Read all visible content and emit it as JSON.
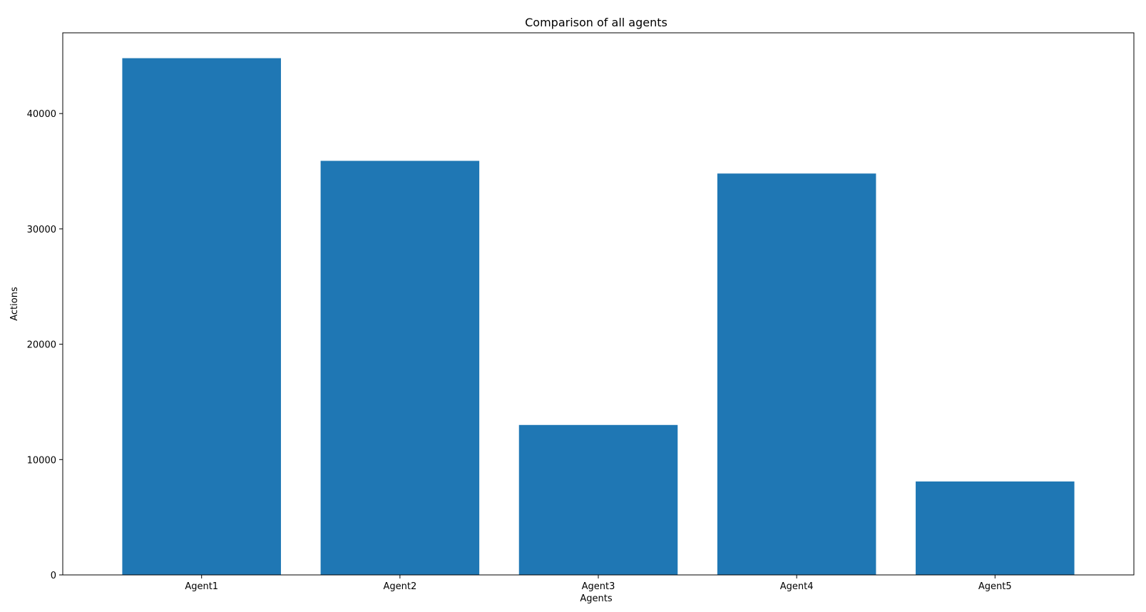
{
  "chart_data": {
    "type": "bar",
    "title": "Comparison of all agents",
    "xlabel": "Agents",
    "ylabel": "Actions",
    "categories": [
      "Agent1",
      "Agent2",
      "Agent3",
      "Agent4",
      "Agent5"
    ],
    "values": [
      44800,
      35900,
      13000,
      34800,
      8100
    ],
    "ylim": [
      0,
      47000
    ],
    "yticks": [
      0,
      10000,
      20000,
      30000,
      40000
    ],
    "ytick_labels": [
      "0",
      "10000",
      "20000",
      "30000",
      "40000"
    ],
    "grid": false,
    "legend": "none",
    "bar_color": "#1f77b4"
  }
}
